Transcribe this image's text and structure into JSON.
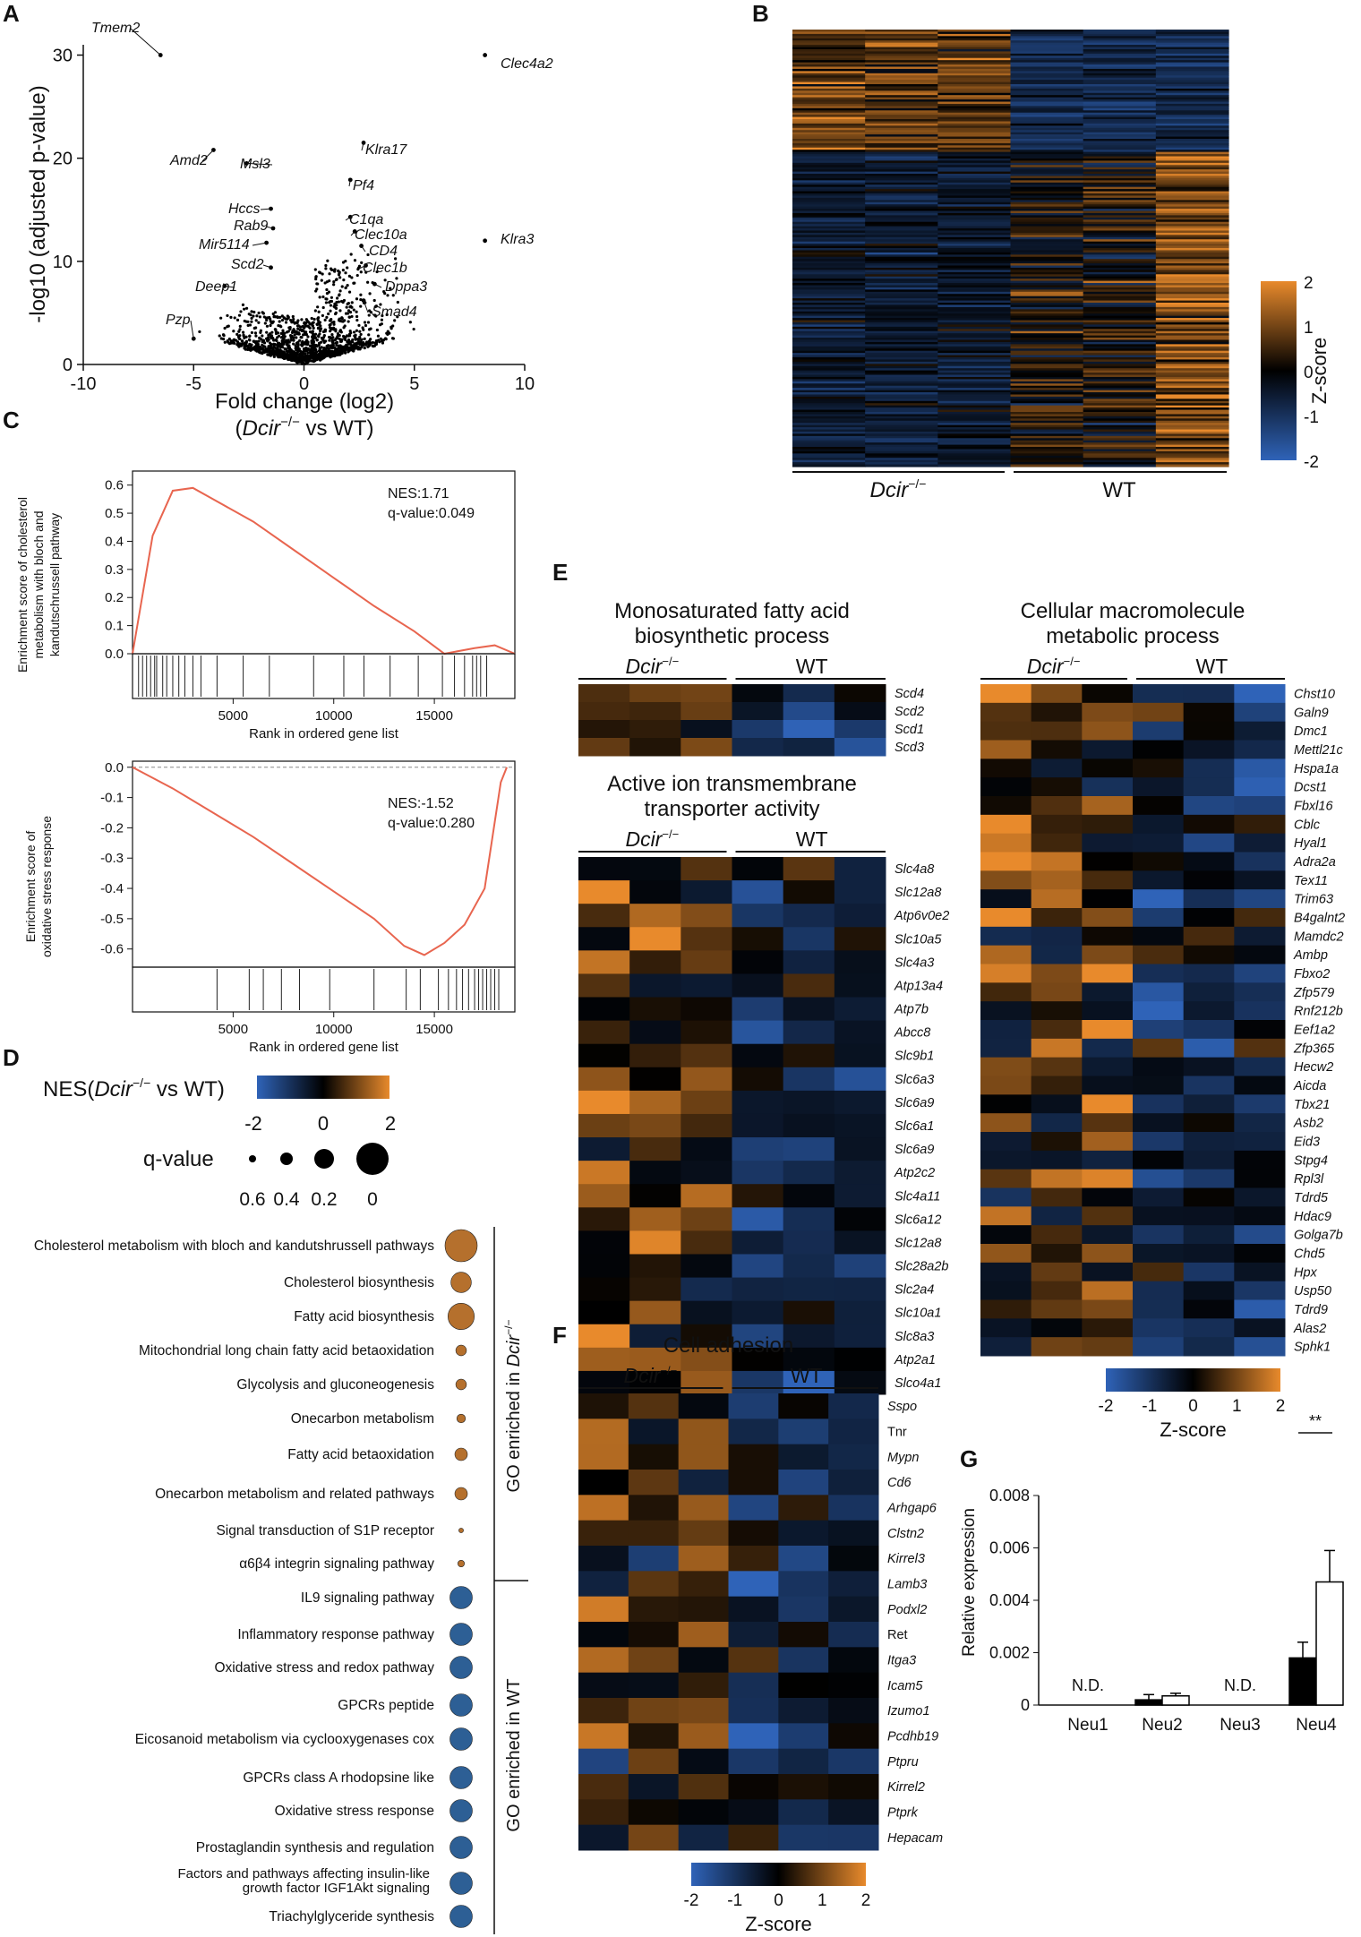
{
  "panels": {
    "A": "A",
    "B": "B",
    "C": "C",
    "D": "D",
    "E": "E",
    "F": "F",
    "G": "G"
  },
  "colors": {
    "pos": "#e88a2c",
    "neg": "#2f63b8",
    "zero": "#000000",
    "point": "#000000",
    "line": "#e8654f",
    "wt_bubble": "#2d5f95",
    "dcir_bubble": "#b5702d"
  },
  "chart_data": [
    {
      "id": "volcano",
      "type": "scatter",
      "xlabel_line1": "Fold change (log2)",
      "xlabel_line2_pre": "(",
      "xlabel_line2_ital": "Dcir",
      "xlabel_line2_sup": "−/−",
      "xlabel_line2_post": " vs WT)",
      "ylabel": "-log10 (adjusted p-value)",
      "xlim": [
        -10,
        10
      ],
      "ylim": [
        0,
        31
      ],
      "xticks": [
        "-10",
        "-5",
        "0",
        "5",
        "10"
      ],
      "yticks": [
        "0",
        "10",
        "20",
        "30"
      ],
      "labeled_points": [
        {
          "label": "Tmem2",
          "x": -6.5,
          "y": 30
        },
        {
          "label": "Clec4a2",
          "x": 8.2,
          "y": 30
        },
        {
          "label": "Amd2",
          "x": -4.1,
          "y": 20.8
        },
        {
          "label": "Msl3",
          "x": -2.6,
          "y": 19.5
        },
        {
          "label": "Klra17",
          "x": 2.7,
          "y": 21.5
        },
        {
          "label": "Pf4",
          "x": 2.1,
          "y": 17.9
        },
        {
          "label": "Hccs",
          "x": -1.5,
          "y": 15.1
        },
        {
          "label": "Rab9",
          "x": -1.4,
          "y": 13.2
        },
        {
          "label": "C1qa",
          "x": 2.1,
          "y": 14.3
        },
        {
          "label": "Clec10a",
          "x": 2.3,
          "y": 12.9
        },
        {
          "label": "Klra3",
          "x": 8.2,
          "y": 12
        },
        {
          "label": "Mir5114",
          "x": -1.7,
          "y": 11.8
        },
        {
          "label": "CD4",
          "x": 2.6,
          "y": 11.5
        },
        {
          "label": "Scd2",
          "x": -1.5,
          "y": 9.4
        },
        {
          "label": "Clec1b",
          "x": 2.8,
          "y": 9.6
        },
        {
          "label": "Deep1",
          "x": -3.6,
          "y": 7.6
        },
        {
          "label": "Dppa3",
          "x": 3.2,
          "y": 7.8
        },
        {
          "label": "Smad4",
          "x": 2.7,
          "y": 6.2
        },
        {
          "label": "Pzp",
          "x": -5.0,
          "y": 2.5
        }
      ]
    },
    {
      "id": "heatmap_main",
      "type": "heatmap",
      "groups": [
        "Dcir",
        "WT"
      ],
      "group_sup": "−/−",
      "colorbar_label": "Z-score",
      "colorbar_ticks": [
        "2",
        "1",
        "0",
        "-1",
        "-2"
      ],
      "zlim": [
        -2,
        2
      ]
    },
    {
      "id": "gsea_cholesterol",
      "type": "line",
      "ylabel": "Enrichment score of cholesterol metabolism with bloch and kandutschrussell pathway",
      "ylabel_lines": [
        "Enrichment score of cholesterol",
        "metabolism with bloch and",
        "kandutschrussell pathway"
      ],
      "xlabel": "Rank in ordered gene list",
      "xticks": [
        "5000",
        "10000",
        "15000"
      ],
      "yticks": [
        "0.0",
        "0.1",
        "0.2",
        "0.3",
        "0.4",
        "0.5",
        "0.6"
      ],
      "nes": "NES:1.71",
      "qvalue": "q-value:0.049",
      "x": [
        0,
        1000,
        2000,
        3000,
        4000,
        6000,
        8000,
        10000,
        12000,
        14000,
        15500,
        17000,
        18000,
        19000
      ],
      "y": [
        0.0,
        0.42,
        0.58,
        0.59,
        0.55,
        0.47,
        0.37,
        0.27,
        0.17,
        0.08,
        0.0,
        0.02,
        0.03,
        0.0
      ],
      "ylim": [
        0,
        0.65
      ],
      "xlim": [
        0,
        19000
      ]
    },
    {
      "id": "gsea_oxidative",
      "type": "line",
      "ylabel_lines": [
        "Enrichment score of",
        "oxidative stress response"
      ],
      "xlabel": "Rank in ordered gene list",
      "xticks": [
        "5000",
        "10000",
        "15000"
      ],
      "yticks": [
        "0.0",
        "-0.1",
        "-0.2",
        "-0.3",
        "-0.4",
        "-0.5",
        "-0.6"
      ],
      "nes": "NES:-1.52",
      "qvalue": "q-value:0.280",
      "x": [
        0,
        2000,
        4000,
        6000,
        8000,
        10000,
        12000,
        13500,
        14500,
        15500,
        16500,
        17500,
        18300,
        18600
      ],
      "y": [
        0.0,
        -0.07,
        -0.15,
        -0.23,
        -0.32,
        -0.41,
        -0.5,
        -0.59,
        -0.62,
        -0.58,
        -0.52,
        -0.4,
        -0.05,
        0.0
      ],
      "ylim": [
        -0.66,
        0.02
      ],
      "xlim": [
        0,
        19000
      ]
    },
    {
      "id": "go_bubble",
      "type": "scatter",
      "legend_title_pre": "NES(",
      "legend_title_ital": "Dcir",
      "legend_title_sup": "−/−",
      "legend_title_post": " vs WT)",
      "nes_ticks": [
        "-2",
        "0",
        "2"
      ],
      "q_title": "q-value",
      "q_ticks": [
        "0.6",
        "0.4",
        "0.2",
        "0"
      ],
      "bracket_dcir_pre": "GO enriched in ",
      "bracket_dcir_ital": "Dcir",
      "bracket_dcir_sup": "−/−",
      "bracket_wt": "GO enriched in WT",
      "terms": [
        {
          "term": "Cholesterol metabolism with bloch and kandutshrussell pathways",
          "nes": 1.7,
          "q": 0.0
        },
        {
          "term": "Cholesterol biosynthesis",
          "nes": 1.5,
          "q": 0.3
        },
        {
          "term": "Fatty acid biosynthesis",
          "nes": 1.6,
          "q": 0.15
        },
        {
          "term": "Mitochondrial long chain fatty acid betaoxidation",
          "nes": 1.4,
          "q": 0.55
        },
        {
          "term": "Glycolysis and gluconeogenesis",
          "nes": 1.3,
          "q": 0.55
        },
        {
          "term": "Onecarbon metabolism",
          "nes": 1.3,
          "q": 0.6
        },
        {
          "term": "Fatty acid betaoxidation",
          "nes": 1.3,
          "q": 0.5
        },
        {
          "term": "Onecarbon metabolism and related pathways",
          "nes": 1.3,
          "q": 0.5
        },
        {
          "term": "Signal transduction of S1P receptor",
          "nes": 1.2,
          "q": 0.7
        },
        {
          "term": "α6β4 integrin signaling pathway",
          "nes": 1.2,
          "q": 0.65
        },
        {
          "term": "IL9 signaling pathway",
          "nes": -1.5,
          "q": 0.25
        },
        {
          "term": "Inflammatory response pathway",
          "nes": -1.5,
          "q": 0.25
        },
        {
          "term": "Oxidative stress and redox pathway",
          "nes": -1.5,
          "q": 0.25
        },
        {
          "term": "GPCRs peptide",
          "nes": -1.5,
          "q": 0.25
        },
        {
          "term": "Eicosanoid metabolism via cyclooxygenases cox",
          "nes": -1.5,
          "q": 0.25
        },
        {
          "term": "GPCRs class A rhodopsine like",
          "nes": -1.5,
          "q": 0.25
        },
        {
          "term": "Oxidative stress response",
          "nes": -1.5,
          "q": 0.25
        },
        {
          "term": "Prostaglandin synthesis and regulation",
          "nes": -1.5,
          "q": 0.25
        },
        {
          "term_line1": "Factors and pathways affecting insulin-like",
          "term_line2": "growth factor IGF1Akt signaling",
          "nes": -1.5,
          "q": 0.25
        },
        {
          "term": "Triachylglyceride synthesis",
          "nes": -1.5,
          "q": 0.25
        }
      ]
    },
    {
      "id": "heat_mufa",
      "type": "heatmap",
      "title_lines": [
        "Monosaturated fatty acid",
        "biosynthetic process"
      ],
      "genes": [
        "Scd4",
        "Scd2",
        "Scd1",
        "Scd3"
      ]
    },
    {
      "id": "heat_ion",
      "type": "heatmap",
      "title_lines": [
        "Active ion transmembrane",
        "transporter activity"
      ],
      "genes": [
        "Slc4a8",
        "Slc12a8",
        "Atp6v0e2",
        "Slc10a5",
        "Slc4a3",
        "Atp13a4",
        "Atp7b",
        "Abcc8",
        "Slc9b1",
        "Slc6a3",
        "Slc6a9",
        "Slc6a1",
        "Slc6a9",
        "Atp2c2",
        "Slc4a11",
        "Slc6a12",
        "Slc12a8",
        "Slc28a2b",
        "Slc2a4",
        "Slc10a1",
        "Slc8a3",
        "Atp2a1",
        "Slco4a1"
      ]
    },
    {
      "id": "heat_macro",
      "type": "heatmap",
      "title_lines": [
        "Cellular macromolecule",
        "metabolic process"
      ],
      "genes": [
        "Chst10",
        "Galn9",
        "Dmc1",
        "Mettl21c",
        "Hspa1a",
        "Dcst1",
        "Fbxl16",
        "Cblc",
        "Hyal1",
        "Adra2a",
        "Tex11",
        "Trim63",
        "B4galnt2",
        "Mamdc2",
        "Ambp",
        "Fbxo2",
        "Zfp579",
        "Rnf212b",
        "Eef1a2",
        "Zfp365",
        "Hecw2",
        "Aicda",
        "Tbx21",
        "Asb2",
        "Eid3",
        "Stpg4",
        "Rpl3l",
        "Tdrd5",
        "Hdac9",
        "Golga7b",
        "Chd5",
        "Hpx",
        "Usp50",
        "Tdrd9",
        "Alas2",
        "Sphk1"
      ],
      "colorbar_ticks": [
        "-2",
        "-1",
        "0",
        "1",
        "2"
      ],
      "colorbar_label": "Z-score"
    },
    {
      "id": "heat_adhesion",
      "type": "heatmap",
      "title_lines": [
        "Cell adhesion"
      ],
      "genes": [
        "Sspo",
        "Tnr",
        "Mypn",
        "Cd6",
        "Arhgap6",
        "Clstn2",
        "Kirrel3",
        "Lamb3",
        "Podxl2",
        "Ret",
        "Itga3",
        "Icam5",
        "Izumo1",
        "Pcdhb19",
        "Ptpru",
        "Kirrel2",
        "Ptprk",
        "Hepacam"
      ],
      "upright_genes": [
        "Tnr",
        "Ret"
      ],
      "colorbar_ticks": [
        "-2",
        "-1",
        "0",
        "1",
        "2"
      ],
      "colorbar_label": "Z-score"
    },
    {
      "id": "bar_neu",
      "type": "bar",
      "categories": [
        "Neu1",
        "Neu2",
        "Neu3",
        "Neu4"
      ],
      "series": [
        {
          "name": "Dcir-/-",
          "values": [
            0,
            0.0002,
            0,
            0.0018
          ],
          "errors": [
            0,
            0.0002,
            0,
            0.0006
          ]
        },
        {
          "name": "WT",
          "values": [
            0,
            0.00035,
            0,
            0.0047
          ],
          "errors": [
            0,
            0.0001,
            0,
            0.0012
          ]
        }
      ],
      "ylabel": "Relative expression",
      "ylim": [
        0,
        0.008
      ],
      "yticks": [
        "0",
        "0.002",
        "0.004",
        "0.006",
        "0.008"
      ],
      "nd_label": "N.D.",
      "sig_label": "**"
    }
  ]
}
